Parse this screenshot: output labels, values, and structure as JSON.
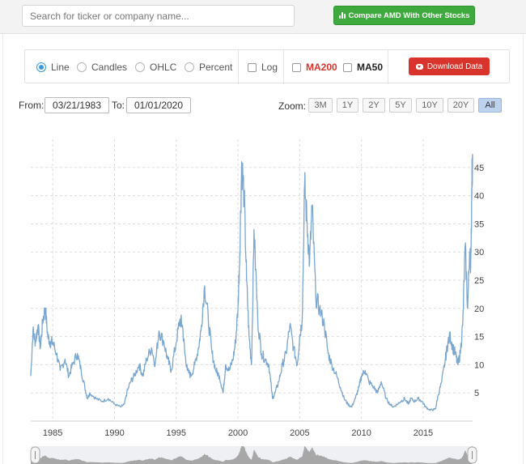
{
  "search": {
    "placeholder": "Search for ticker or company name..."
  },
  "compare_button": {
    "label": "Compare AMD With Other Stocks"
  },
  "chart_types": [
    {
      "label": "Line",
      "selected": true
    },
    {
      "label": "Candles",
      "selected": false
    },
    {
      "label": "OHLC",
      "selected": false
    },
    {
      "label": "Percent",
      "selected": false
    }
  ],
  "toggles": {
    "log": "Log",
    "ma200": "MA200",
    "ma50": "MA50"
  },
  "download_button": {
    "label": "Download Data"
  },
  "range": {
    "from_label": "From:",
    "from_value": "03/21/1983",
    "to_label": "To:",
    "to_value": "01/01/2020"
  },
  "zoom": {
    "label": "Zoom:",
    "options": [
      "3M",
      "1Y",
      "2Y",
      "5Y",
      "10Y",
      "20Y",
      "All"
    ],
    "active": "All"
  },
  "colors": {
    "series": "#7aa6cf",
    "navigator": "#9a9a9a",
    "grid": "#dddddd",
    "accent_green": "#3eaa3e",
    "accent_red": "#d9342b"
  },
  "icons": {
    "compare": "bar-chart-icon",
    "download": "cloud-download-icon"
  },
  "chart_data": {
    "type": "line",
    "x_ticks": [
      1985,
      1990,
      1995,
      2000,
      2005,
      2010,
      2015
    ],
    "y_ticks": [
      5,
      10,
      15,
      20,
      25,
      30,
      35,
      40,
      45
    ],
    "xlim": [
      1983.22,
      2019.0
    ],
    "ylim": [
      0,
      50
    ],
    "grid": true,
    "series": [
      {
        "x": [
          1983.22,
          1983.4,
          1983.6,
          1983.8,
          1984.0,
          1984.2,
          1984.4,
          1984.6,
          1984.8,
          1985.0,
          1985.3,
          1985.6,
          1986.0,
          1986.3,
          1986.6,
          1987.0,
          1987.3,
          1987.6,
          1987.8,
          1988.0,
          1988.5,
          1989.0,
          1989.5,
          1990.0,
          1990.5,
          1990.8,
          1991.0,
          1991.3,
          1991.6,
          1992.0,
          1992.3,
          1992.6,
          1993.0,
          1993.3,
          1993.6,
          1994.0,
          1994.3,
          1994.6,
          1995.0,
          1995.3,
          1995.5,
          1995.7,
          1995.9,
          1996.2,
          1996.5,
          1996.8,
          1997.0,
          1997.3,
          1997.6,
          1997.9,
          1998.2,
          1998.5,
          1998.8,
          1999.0,
          1999.3,
          1999.6,
          1999.8,
          2000.0,
          2000.15,
          2000.3,
          2000.5,
          2000.7,
          2000.9,
          2001.1,
          2001.3,
          2001.6,
          2001.9,
          2002.2,
          2002.5,
          2002.8,
          2003.0,
          2003.3,
          2003.6,
          2003.9,
          2004.2,
          2004.5,
          2004.8,
          2005.0,
          2005.2,
          2005.4,
          2005.6,
          2005.8,
          2006.0,
          2006.3,
          2006.6,
          2007.0,
          2007.3,
          2007.6,
          2008.0,
          2008.3,
          2008.6,
          2008.9,
          2009.2,
          2009.5,
          2009.8,
          2010.0,
          2010.3,
          2010.6,
          2011.0,
          2011.3,
          2011.6,
          2012.0,
          2012.3,
          2012.6,
          2012.9,
          2013.2,
          2013.5,
          2013.8,
          2014.0,
          2014.3,
          2014.6,
          2014.9,
          2015.2,
          2015.5,
          2015.8,
          2016.0,
          2016.2,
          2016.5,
          2016.8,
          2017.0,
          2017.2,
          2017.4,
          2017.6,
          2017.8,
          2018.0,
          2018.2,
          2018.4,
          2018.6,
          2018.75,
          2018.85,
          2018.95,
          2019.0
        ],
        "y": [
          8,
          16,
          14,
          17,
          13,
          18,
          20,
          15,
          14,
          14,
          12,
          9,
          11,
          8,
          10,
          12,
          9,
          6,
          4,
          5,
          4,
          3.5,
          4,
          3,
          2.5,
          3,
          5,
          7,
          8,
          10,
          8,
          11,
          13,
          10,
          16,
          14,
          11,
          9,
          14,
          18,
          17,
          12,
          9,
          8,
          10,
          13,
          16,
          24,
          18,
          12,
          9,
          8,
          5,
          10,
          9,
          11,
          14,
          20,
          30,
          46,
          40,
          25,
          15,
          10,
          34,
          18,
          12,
          11,
          10,
          4,
          5,
          7,
          10,
          12,
          17,
          13,
          10,
          15,
          18,
          42,
          35,
          28,
          38,
          22,
          20,
          17,
          12,
          10,
          8,
          6,
          4,
          3,
          2.5,
          4,
          6,
          8,
          9,
          7,
          6,
          5,
          7,
          4,
          3,
          2.5,
          3,
          3.5,
          4,
          3,
          4,
          3.5,
          4,
          3.5,
          2.5,
          2,
          2,
          2.2,
          4.5,
          7,
          11,
          14,
          15,
          13,
          12,
          10,
          12,
          17,
          31,
          20,
          30,
          28,
          43,
          47
        ]
      }
    ]
  }
}
